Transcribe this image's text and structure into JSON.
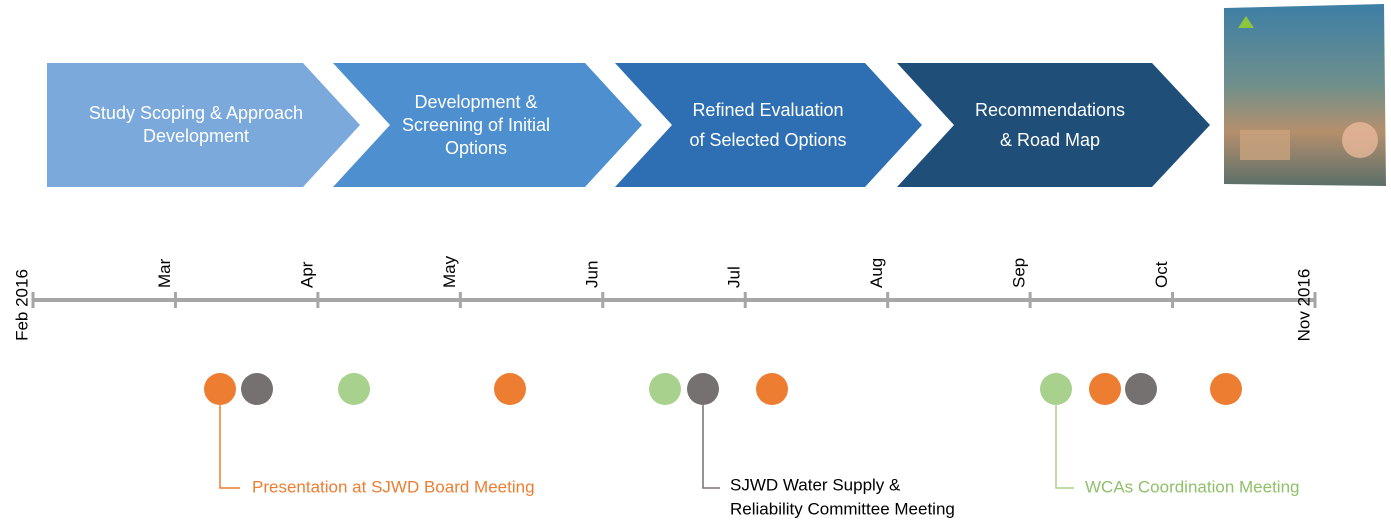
{
  "phases": [
    {
      "lines": [
        "Study Scoping & Approach",
        "Development"
      ]
    },
    {
      "lines": [
        "Development &",
        "Screening of Initial",
        "Options"
      ]
    },
    {
      "lines": [
        "Refined Evaluation",
        "of Selected Options"
      ]
    },
    {
      "lines": [
        "Recommendations",
        "& Road Map"
      ]
    }
  ],
  "timeline": {
    "months": [
      "Feb 2016",
      "Mar",
      "Apr",
      "May",
      "Jun",
      "Jul",
      "Aug",
      "Sep",
      "Oct",
      "Nov 2016"
    ]
  },
  "callouts": [
    {
      "lines": [
        "Presentation at SJWD Board Meeting"
      ]
    },
    {
      "lines": [
        "SJWD Water Supply &",
        "Reliability Committee Meeting"
      ]
    },
    {
      "lines": [
        "WCAs Coordination Meeting"
      ]
    }
  ]
}
